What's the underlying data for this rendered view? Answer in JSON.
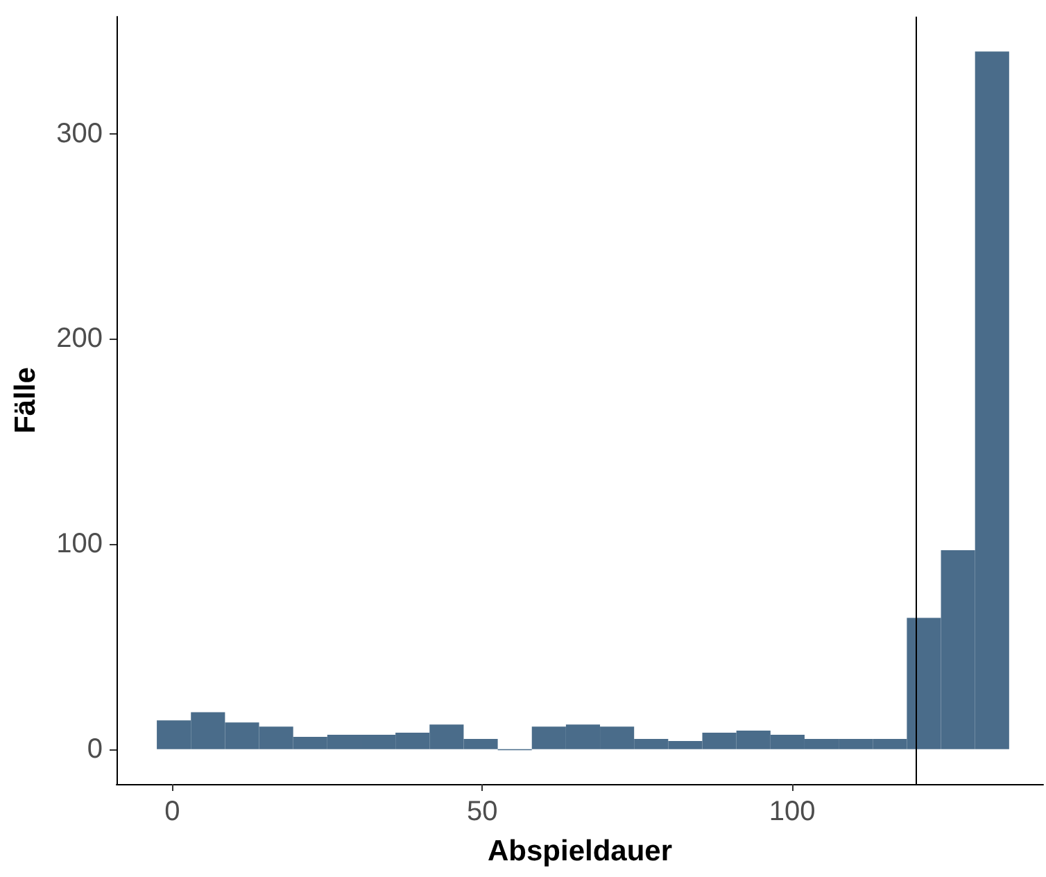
{
  "chart_data": {
    "type": "histogram",
    "xlabel": "Abspieldauer",
    "ylabel": "Fälle",
    "bins": [
      -2.5,
      3,
      8.5,
      14,
      19.5,
      25,
      30.5,
      36,
      41.5,
      47,
      52.5,
      58,
      63.5,
      69,
      74.5,
      80,
      85.5,
      91,
      96.5,
      102,
      107.5,
      113,
      118.5,
      124,
      129.5,
      135
    ],
    "values": [
      14,
      18,
      13,
      11,
      6,
      7,
      7,
      8,
      12,
      5,
      0,
      11,
      12,
      11,
      5,
      4,
      8,
      9,
      7,
      5,
      5,
      5,
      64,
      97,
      340
    ],
    "color": "#4a6c8a",
    "xlim": [
      -9,
      140.5
    ],
    "xticks": [
      0,
      50,
      100
    ],
    "ylim": [
      -17,
      357
    ],
    "yticks": [
      0,
      100,
      200,
      300
    ],
    "grid": false,
    "ref_lines": [
      {
        "axis": "x",
        "value": 120,
        "color": "#000000"
      }
    ]
  }
}
